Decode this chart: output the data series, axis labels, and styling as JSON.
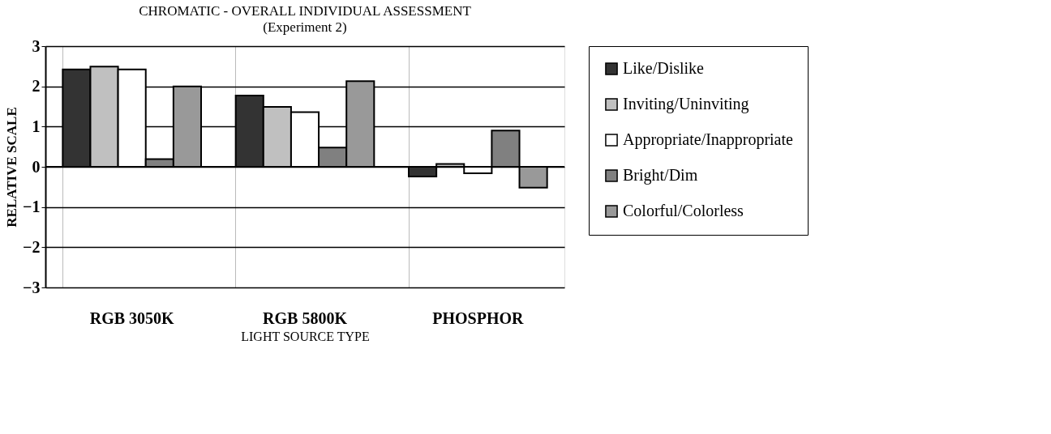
{
  "chart_data": {
    "type": "bar",
    "title": "CHROMATIC - OVERALL INDIVIDUAL ASSESSMENT",
    "subtitle": "(Experiment 2)",
    "xlabel": "LIGHT SOURCE TYPE",
    "ylabel": "RELATIVE SCALE",
    "categories": [
      "RGB 3050K",
      "RGB 5800K",
      "PHOSPHOR"
    ],
    "series": [
      {
        "name": "Like/Dislike",
        "color": "#333333",
        "values": [
          2.42,
          1.77,
          -0.24
        ]
      },
      {
        "name": "Inviting/Uninviting",
        "color": "#c0c0c0",
        "values": [
          2.49,
          1.49,
          0.07
        ]
      },
      {
        "name": "Appropriate/Inappropriate",
        "color": "#ffffff",
        "values": [
          2.42,
          1.36,
          -0.16
        ]
      },
      {
        "name": "Bright/Dim",
        "color": "#808080",
        "values": [
          0.19,
          0.48,
          0.9
        ]
      },
      {
        "name": "Colorful/Colorless",
        "color": "#999999",
        "values": [
          2.0,
          2.13,
          -0.52
        ]
      }
    ],
    "ylim": [
      -3,
      3
    ],
    "yticks": [
      -3,
      -2,
      -1,
      0,
      1,
      2,
      3
    ],
    "grid": true,
    "legend": "right"
  }
}
